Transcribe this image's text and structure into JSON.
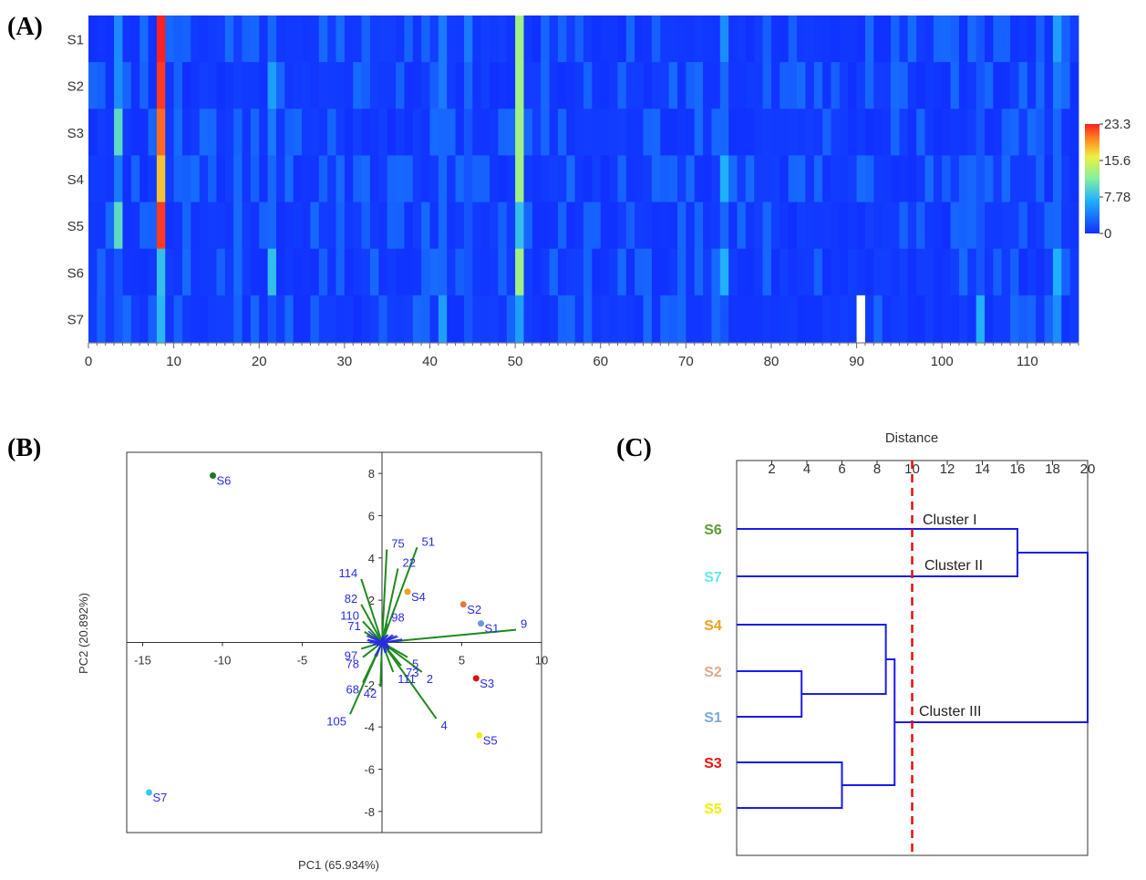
{
  "chart_data": [
    {
      "panel": "(A)",
      "type": "heatmap",
      "rows": [
        "S1",
        "S2",
        "S3",
        "S4",
        "S5",
        "S6",
        "S7"
      ],
      "x_ticks": [
        "0",
        "10",
        "20",
        "30",
        "40",
        "50",
        "60",
        "70",
        "80",
        "90",
        "100",
        "110"
      ],
      "xlim": [
        0,
        116
      ],
      "colorbar": {
        "min": 0,
        "max": 23.3,
        "labels": [
          "23.3",
          "15.6",
          "7.78",
          "0"
        ]
      },
      "hot_columns": [
        {
          "col": 8,
          "values": [
            23.3,
            22.5,
            21.0,
            18.0,
            22.5,
            8.0,
            7.5
          ]
        },
        {
          "col": 50,
          "values": [
            13.0,
            13.0,
            13.0,
            13.0,
            8.0,
            13.0,
            6.0
          ]
        },
        {
          "col": 21,
          "values": [
            3.0,
            6.0,
            4.0,
            3.0,
            3.0,
            8.0,
            2.0
          ]
        },
        {
          "col": 3,
          "values": [
            5.0,
            5.0,
            10.0,
            4.0,
            10.0,
            2.0,
            2.0
          ]
        },
        {
          "col": 74,
          "values": [
            5.0,
            3.0,
            3.0,
            7.0,
            3.0,
            7.0,
            2.0
          ]
        },
        {
          "col": 113,
          "values": [
            6.0,
            4.0,
            3.0,
            3.0,
            3.0,
            7.0,
            5.0
          ]
        },
        {
          "col": 41,
          "values": [
            4.0,
            4.0,
            3.0,
            3.0,
            3.0,
            3.0,
            6.0
          ]
        },
        {
          "col": 104,
          "values": [
            2.0,
            2.0,
            2.0,
            2.0,
            2.0,
            2.0,
            7.0
          ]
        },
        {
          "col": 44,
          "values": [
            4.0,
            3.0,
            2.0,
            2.0,
            2.0,
            2.0,
            2.0
          ]
        }
      ],
      "missing_cells": [
        {
          "row": "S7",
          "col": 90
        }
      ]
    },
    {
      "panel": "(B)",
      "type": "scatter",
      "xlabel": "PC1 (65.934%)",
      "ylabel": "PC2 (20.892%)",
      "xlim": [
        -16,
        10
      ],
      "ylim": [
        -9,
        9
      ],
      "x_ticks": [
        "-15",
        "-10",
        "-5",
        "5",
        "10"
      ],
      "y_ticks": [
        "8",
        "6",
        "4",
        "2",
        "-2",
        "-4",
        "-6",
        "-8"
      ],
      "points": [
        {
          "label": "S6",
          "x": -10.6,
          "y": 7.9,
          "color": "#1a7a1a"
        },
        {
          "label": "S7",
          "x": -14.6,
          "y": -7.1,
          "color": "#33ccee"
        },
        {
          "label": "S4",
          "x": 1.6,
          "y": 2.4,
          "color": "#f0a020"
        },
        {
          "label": "S2",
          "x": 5.1,
          "y": 1.8,
          "color": "#e07a3a"
        },
        {
          "label": "S1",
          "x": 6.2,
          "y": 0.9,
          "color": "#6a9ad8"
        },
        {
          "label": "S3",
          "x": 5.9,
          "y": -1.7,
          "color": "#dd1111"
        },
        {
          "label": "S5",
          "x": 6.1,
          "y": -4.4,
          "color": "#eeee00"
        }
      ],
      "loadings": [
        {
          "label": "51",
          "x": 2.2,
          "y": 4.5
        },
        {
          "label": "75",
          "x": 0.3,
          "y": 4.4
        },
        {
          "label": "22",
          "x": 1.0,
          "y": 3.5
        },
        {
          "label": "114",
          "x": -1.3,
          "y": 3.0
        },
        {
          "label": "82",
          "x": -1.3,
          "y": 1.8
        },
        {
          "label": "110",
          "x": -1.2,
          "y": 1.0
        },
        {
          "label": "98",
          "x": 0.3,
          "y": 0.9
        },
        {
          "label": "71",
          "x": -1.1,
          "y": 0.5
        },
        {
          "label": "9",
          "x": 8.4,
          "y": 0.6
        },
        {
          "label": "5",
          "x": 1.6,
          "y": -0.7
        },
        {
          "label": "2",
          "x": 2.5,
          "y": -1.4
        },
        {
          "label": "4",
          "x": 3.4,
          "y": -3.6
        },
        {
          "label": "68",
          "x": -1.2,
          "y": -1.9
        },
        {
          "label": "42",
          "x": -0.1,
          "y": -2.1
        },
        {
          "label": "105",
          "x": -2.0,
          "y": -3.4
        },
        {
          "label": "78",
          "x": -1.2,
          "y": -0.7
        },
        {
          "label": "97",
          "x": -1.3,
          "y": -0.3
        },
        {
          "label": "111",
          "x": 0.7,
          "y": -1.4
        },
        {
          "label": "73",
          "x": 1.2,
          "y": -1.1
        }
      ]
    },
    {
      "panel": "(C)",
      "type": "dendrogram",
      "axis_title": "Distance",
      "x_ticks": [
        "2",
        "4",
        "6",
        "8",
        "10",
        "12",
        "14",
        "16",
        "18",
        "20"
      ],
      "xlim": [
        0,
        20
      ],
      "cut_line": 10,
      "leaves": [
        {
          "label": "S6",
          "color": "#5a9e2f"
        },
        {
          "label": "S7",
          "color": "#66e6f0"
        },
        {
          "label": "S4",
          "color": "#f0a020"
        },
        {
          "label": "S2",
          "color": "#e0a888"
        },
        {
          "label": "S1",
          "color": "#7aa8e0"
        },
        {
          "label": "S3",
          "color": "#ee1111"
        },
        {
          "label": "S5",
          "color": "#f0f000"
        }
      ],
      "merges": [
        {
          "items": [
            "S2",
            "S1"
          ],
          "height": 3.7
        },
        {
          "items": [
            "S3",
            "S5"
          ],
          "height": 6.0
        },
        {
          "items": [
            "S4",
            "S2+S1"
          ],
          "height": 8.5
        },
        {
          "items": [
            "S4+S2+S1",
            "S3+S5"
          ],
          "height": 9.0
        },
        {
          "items": [
            "S6",
            "S7"
          ],
          "height": 16.0
        },
        {
          "items": [
            "S6+S7",
            "rest"
          ],
          "height": 20.0
        }
      ],
      "cluster_labels": [
        "Cluster I",
        "Cluster II",
        "Cluster III"
      ]
    }
  ]
}
